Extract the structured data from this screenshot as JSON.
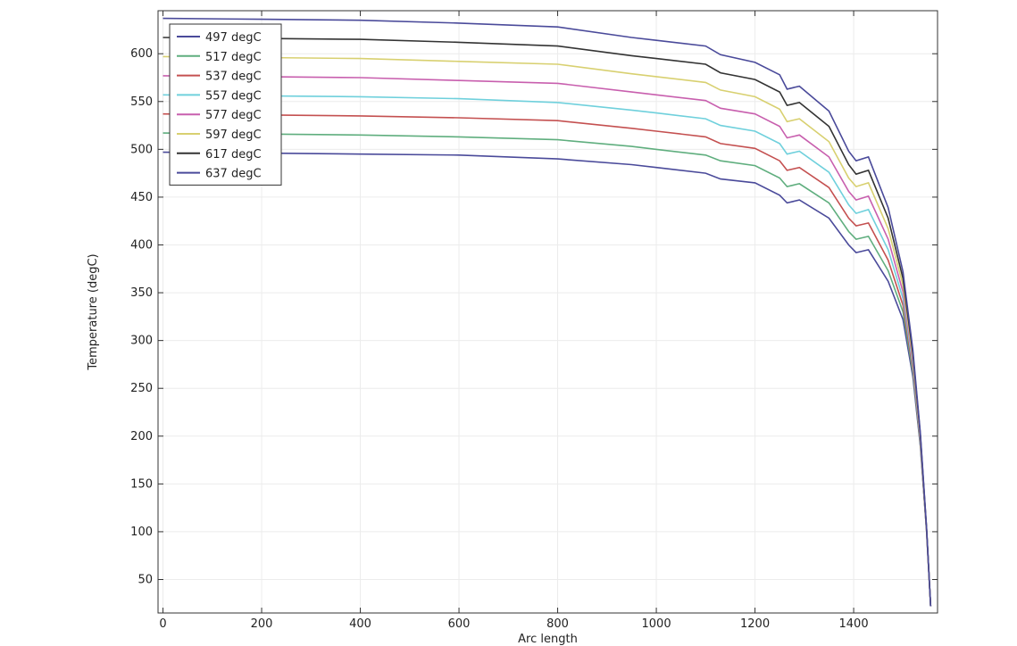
{
  "chart_data": {
    "type": "line",
    "xlabel": "Arc length",
    "ylabel": "Temperature (degC)",
    "xlim": [
      -10,
      1570
    ],
    "ylim": [
      15,
      645
    ],
    "grid": true,
    "legend_placement": "top-left",
    "x_ticks": [
      0,
      200,
      400,
      600,
      800,
      1000,
      1200,
      1400
    ],
    "y_ticks": [
      50,
      100,
      150,
      200,
      250,
      300,
      350,
      400,
      450,
      500,
      550,
      600
    ],
    "x": [
      0,
      200,
      400,
      600,
      800,
      950,
      1000,
      1100,
      1130,
      1200,
      1250,
      1265,
      1290,
      1350,
      1390,
      1405,
      1430,
      1470,
      1500,
      1520,
      1535,
      1548,
      1556
    ],
    "series": [
      {
        "name": "497 degC",
        "color": "#4a4a9a",
        "values": [
          497,
          496,
          495,
          494,
          490,
          484,
          481,
          475,
          469,
          465,
          452,
          444,
          447,
          428,
          400,
          392,
          395,
          362,
          322,
          262,
          190,
          100,
          22
        ]
      },
      {
        "name": "517 degC",
        "color": "#5fae7e",
        "values": [
          517,
          516,
          515,
          513,
          510,
          503,
          500,
          494,
          488,
          483,
          470,
          461,
          464,
          444,
          414,
          406,
          409,
          373,
          330,
          266,
          192,
          100,
          22
        ]
      },
      {
        "name": "537 degC",
        "color": "#c45050",
        "values": [
          537,
          536,
          535,
          533,
          530,
          522,
          519,
          513,
          506,
          501,
          488,
          478,
          481,
          460,
          428,
          420,
          423,
          384,
          337,
          270,
          194,
          100,
          22
        ]
      },
      {
        "name": "557 degC",
        "color": "#6fd0dc",
        "values": [
          557,
          556,
          555,
          553,
          549,
          541,
          538,
          532,
          525,
          519,
          506,
          495,
          498,
          476,
          442,
          433,
          437,
          395,
          344,
          274,
          196,
          101,
          22
        ]
      },
      {
        "name": "577 degC",
        "color": "#c85fae",
        "values": [
          577,
          576,
          575,
          572,
          569,
          560,
          557,
          551,
          543,
          537,
          524,
          512,
          515,
          492,
          456,
          447,
          451,
          406,
          351,
          278,
          198,
          101,
          22
        ]
      },
      {
        "name": "597 degC",
        "color": "#d8d070",
        "values": [
          597,
          596,
          595,
          592,
          589,
          579,
          576,
          570,
          562,
          555,
          542,
          529,
          532,
          508,
          470,
          461,
          465,
          417,
          358,
          282,
          200,
          102,
          22
        ]
      },
      {
        "name": "617 degC",
        "color": "#333333",
        "values": [
          617,
          616,
          615,
          612,
          608,
          598,
          595,
          589,
          580,
          573,
          560,
          546,
          549,
          524,
          484,
          474,
          478,
          428,
          365,
          286,
          202,
          102,
          22
        ]
      },
      {
        "name": "637 degC",
        "color": "#4a4a9a",
        "values": [
          637,
          636,
          635,
          632,
          628,
          617,
          614,
          608,
          599,
          591,
          578,
          563,
          566,
          540,
          498,
          488,
          492,
          439,
          372,
          290,
          204,
          103,
          22
        ]
      }
    ]
  }
}
